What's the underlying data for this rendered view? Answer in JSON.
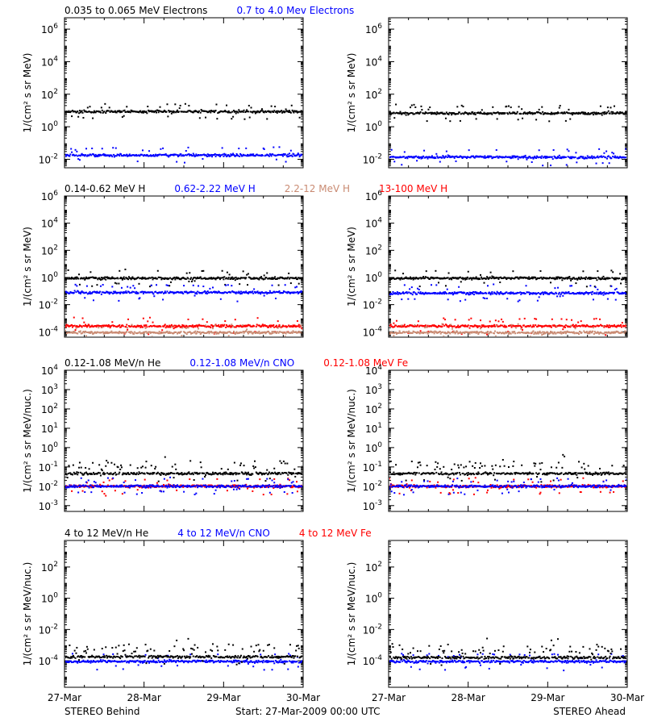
{
  "colors": {
    "black": "#000000",
    "blue": "#0000ff",
    "tan": "#c98a72",
    "red": "#ff0000"
  },
  "footer": {
    "left": "STEREO Behind",
    "center": "Start: 27-Mar-2009 00:00 UTC",
    "right": "STEREO Ahead"
  },
  "chart_data": {
    "type": "scatter",
    "x_tick_labels": [
      "27-Mar",
      "28-Mar",
      "29-Mar",
      "30-Mar"
    ],
    "xlim": [
      0,
      3
    ],
    "x_unit": "days from 27-Mar-2009 00:00 UTC",
    "yscale": "log",
    "panels": [
      {
        "row": 0,
        "ylabel": "1/(cm² s sr MeV)",
        "ylim": [
          0.003,
          5000000
        ],
        "yticks": [
          {
            "v": 0.01,
            "base": "10",
            "exp": "-2"
          },
          {
            "v": 1,
            "base": "10",
            "exp": "0"
          },
          {
            "v": 100,
            "base": "10",
            "exp": "2"
          },
          {
            "v": 10000,
            "base": "10",
            "exp": "4"
          },
          {
            "v": 1000000,
            "base": "10",
            "exp": "6"
          }
        ],
        "legend": [
          {
            "text": "0.035 to 0.065 MeV Electrons",
            "color": "#000000"
          },
          {
            "text": "0.7 to 4.0 Mev Electrons",
            "color": "#0000ff"
          }
        ],
        "series_behind": [
          {
            "name": "0.035 to 0.065 MeV Electrons",
            "color": "#000000",
            "level": 9.5
          },
          {
            "name": "0.7 to 4.0 Mev Electrons",
            "color": "#0000ff",
            "level": 0.02
          }
        ],
        "series_ahead": [
          {
            "name": "0.035 to 0.065 MeV Electrons",
            "color": "#000000",
            "level": 7.5
          },
          {
            "name": "0.7 to 4.0 Mev Electrons",
            "color": "#0000ff",
            "level": 0.015
          }
        ]
      },
      {
        "row": 1,
        "ylabel": "1/(cm² s sr MeV)",
        "ylim": [
          4e-05,
          1000000
        ],
        "yticks": [
          {
            "v": 0.0001,
            "base": "10",
            "exp": "-4"
          },
          {
            "v": 0.01,
            "base": "10",
            "exp": "-2"
          },
          {
            "v": 1,
            "base": "10",
            "exp": "0"
          },
          {
            "v": 100,
            "base": "10",
            "exp": "2"
          },
          {
            "v": 10000,
            "base": "10",
            "exp": "4"
          },
          {
            "v": 1000000,
            "base": "10",
            "exp": "6"
          }
        ],
        "legend": [
          {
            "text": "0.14-0.62 MeV H",
            "color": "#000000"
          },
          {
            "text": "0.62-2.22 MeV H",
            "color": "#0000ff"
          },
          {
            "text": "2.2-12 MeV H",
            "color": "#c98a72"
          },
          {
            "text": "13-100 MeV H",
            "color": "#ff0000"
          }
        ],
        "series_behind": [
          {
            "name": "0.14-0.62 MeV H",
            "color": "#000000",
            "level": 1.0
          },
          {
            "name": "0.62-2.22 MeV H",
            "color": "#0000ff",
            "level": 0.09
          },
          {
            "name": "13-100 MeV H",
            "color": "#ff0000",
            "level": 0.0003
          },
          {
            "name": "2.2-12 MeV H",
            "color": "#c98a72",
            "level": 0.0001
          }
        ],
        "series_ahead": [
          {
            "name": "0.14-0.62 MeV H",
            "color": "#000000",
            "level": 1.0
          },
          {
            "name": "0.62-2.22 MeV H",
            "color": "#0000ff",
            "level": 0.08
          },
          {
            "name": "13-100 MeV H",
            "color": "#ff0000",
            "level": 0.0003
          },
          {
            "name": "2.2-12 MeV H",
            "color": "#c98a72",
            "level": 0.0001
          }
        ]
      },
      {
        "row": 2,
        "ylabel": "1/(cm² s sr MeV/nuc.)",
        "ylim": [
          0.0005,
          10000
        ],
        "yticks": [
          {
            "v": 0.001,
            "base": "10",
            "exp": "-3"
          },
          {
            "v": 0.01,
            "base": "10",
            "exp": "-2"
          },
          {
            "v": 0.1,
            "base": "10",
            "exp": "-1"
          },
          {
            "v": 1,
            "base": "10",
            "exp": "0"
          },
          {
            "v": 10,
            "base": "10",
            "exp": "1"
          },
          {
            "v": 100,
            "base": "10",
            "exp": "2"
          },
          {
            "v": 1000,
            "base": "10",
            "exp": "3"
          },
          {
            "v": 10000,
            "base": "10",
            "exp": "4"
          }
        ],
        "legend": [
          {
            "text": "0.12-1.08 MeV/n He",
            "color": "#000000"
          },
          {
            "text": "0.12-1.08 MeV/n CNO",
            "color": "#0000ff"
          },
          {
            "text": "0.12-1.08 MeV Fe",
            "color": "#ff0000"
          }
        ],
        "series_behind": [
          {
            "name": "0.12-1.08 MeV/n He",
            "color": "#000000",
            "level": 0.05
          },
          {
            "name": "0.12-1.08 MeV Fe",
            "color": "#ff0000",
            "level": 0.011
          },
          {
            "name": "0.12-1.08 MeV/n CNO",
            "color": "#0000ff",
            "level": 0.011
          }
        ],
        "series_ahead": [
          {
            "name": "0.12-1.08 MeV/n He",
            "color": "#000000",
            "level": 0.05
          },
          {
            "name": "0.12-1.08 MeV Fe",
            "color": "#ff0000",
            "level": 0.011
          },
          {
            "name": "0.12-1.08 MeV/n CNO",
            "color": "#0000ff",
            "level": 0.011
          }
        ]
      },
      {
        "row": 3,
        "ylabel": "1/(cm² s sr MeV/nuc.)",
        "ylim": [
          2e-06,
          5000
        ],
        "yticks": [
          {
            "v": 0.0001,
            "base": "10",
            "exp": "-4"
          },
          {
            "v": 0.01,
            "base": "10",
            "exp": "-2"
          },
          {
            "v": 1,
            "base": "10",
            "exp": "0"
          },
          {
            "v": 100,
            "base": "10",
            "exp": "2"
          }
        ],
        "legend": [
          {
            "text": "4 to 12 MeV/n He",
            "color": "#000000"
          },
          {
            "text": "4 to 12 MeV/n CNO",
            "color": "#0000ff"
          },
          {
            "text": "4 to 12 MeV Fe",
            "color": "#ff0000"
          }
        ],
        "series_behind": [
          {
            "name": "4 to 12 MeV/n CNO",
            "color": "#0000ff",
            "level": 0.0001
          },
          {
            "name": "4 to 12 MeV/n He",
            "color": "#000000",
            "level": 0.0002
          }
        ],
        "series_ahead": [
          {
            "name": "4 to 12 MeV/n CNO",
            "color": "#0000ff",
            "level": 0.0001
          },
          {
            "name": "4 to 12 MeV/n He",
            "color": "#000000",
            "level": 0.00018
          }
        ]
      }
    ]
  }
}
